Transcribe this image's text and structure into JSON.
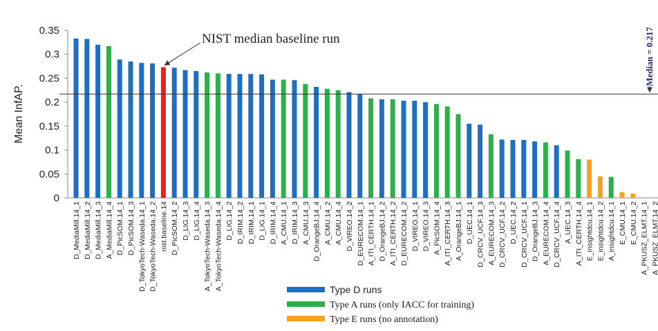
{
  "chart_data": {
    "type": "bar",
    "y_label": "Mean InfAP.",
    "categories": [
      "D_MediaMill.14_1",
      "D_MediaMill.14_2",
      "D_MediaMill.14_3",
      "A_MediaMill.14_4",
      "D_PicSOM.14_1",
      "D_PicSOM.14_3",
      "D_TokyoTech-Waseda.14_1",
      "D_TokyoTech-Waseda.14_2",
      "nist.baseline.14",
      "D_PicSOM.14_2",
      "D_LIG.14_3",
      "D_LIG.14_4",
      "A_TokyoTech-Waseda.14_3",
      "A_TokyoTech-Waseda.14_4",
      "D_LIG.14_2",
      "D_IRIM.14_2",
      "D_IRIM.14_1",
      "D_LIG.14_1",
      "D_IRIM.14_4",
      "A_CMU.14_1",
      "D_IRIM.14_3",
      "A_CMU.14_3",
      "D_OrangeBJ.14_4",
      "A_CMU.14_2",
      "A_CMU.14_4",
      "D_VIREO.14_2",
      "D_EURECOM.14_1",
      "A_ITI_CERTH.14_1",
      "D_OrangeBJ.14_2",
      "A_ITI_CERTH.14_2",
      "D_EURECOM.14_2",
      "D_VIREO.14_1",
      "D_VIREO.14_3",
      "A_PicSOM.14_4",
      "A_ITI_CERTH.14_3",
      "A_OrangeBJ.14_1",
      "D_UEC.14_1",
      "D_CRCV_UCF.14_3",
      "A_EURECOM.14_3",
      "D_CRCV_UCF.14_2",
      "D_UEC.14_2",
      "D_CRCV_UCF.14_1",
      "D_OrangeBJ.14_3",
      "A_EURECOM.14_4",
      "D_CRCV_UCF.14_4",
      "A_UEC.14_3",
      "A_ITI_CERTH.14_4",
      "E_insightdcu.14_1",
      "E_insightdcu.14_2",
      "A_insightdcu.14_1",
      "E_CMU.14_1",
      "E_CMU.14_2",
      "A_PKUSZ_ELMT.14_1",
      "A_PKUSZ_ELMT.14_2"
    ],
    "values": [
      0.333,
      0.332,
      0.32,
      0.317,
      0.289,
      0.285,
      0.282,
      0.281,
      0.273,
      0.272,
      0.267,
      0.265,
      0.262,
      0.26,
      0.259,
      0.259,
      0.259,
      0.258,
      0.247,
      0.247,
      0.246,
      0.238,
      0.232,
      0.228,
      0.225,
      0.221,
      0.217,
      0.208,
      0.206,
      0.206,
      0.203,
      0.203,
      0.2,
      0.196,
      0.191,
      0.175,
      0.155,
      0.153,
      0.133,
      0.122,
      0.121,
      0.121,
      0.118,
      0.116,
      0.11,
      0.099,
      0.081,
      0.08,
      0.045,
      0.044,
      0.012,
      0.009,
      0,
      0
    ],
    "colors": [
      "#1f6fc1",
      "#1f6fc1",
      "#1f6fc1",
      "#2db04b",
      "#1f6fc1",
      "#1f6fc1",
      "#1f6fc1",
      "#1f6fc1",
      "#e8211c",
      "#1f6fc1",
      "#1f6fc1",
      "#1f6fc1",
      "#2db04b",
      "#2db04b",
      "#1f6fc1",
      "#1f6fc1",
      "#1f6fc1",
      "#1f6fc1",
      "#1f6fc1",
      "#2db04b",
      "#1f6fc1",
      "#2db04b",
      "#1f6fc1",
      "#2db04b",
      "#2db04b",
      "#1f6fc1",
      "#1f6fc1",
      "#2db04b",
      "#1f6fc1",
      "#2db04b",
      "#1f6fc1",
      "#1f6fc1",
      "#1f6fc1",
      "#2db04b",
      "#2db04b",
      "#2db04b",
      "#1f6fc1",
      "#1f6fc1",
      "#2db04b",
      "#1f6fc1",
      "#1f6fc1",
      "#1f6fc1",
      "#1f6fc1",
      "#2db04b",
      "#1f6fc1",
      "#2db04b",
      "#2db04b",
      "#f7a21b",
      "#f7a21b",
      "#2db04b",
      "#f7a21b",
      "#f7a21b",
      "#2db04b",
      "#2db04b"
    ],
    "ylim": [
      0,
      0.35
    ],
    "yticks": [
      0,
      0.05,
      0.1,
      0.15,
      0.2,
      0.25,
      0.3,
      0.35
    ],
    "median": {
      "value": 0.217,
      "label": "Median = 0.217"
    },
    "baseline_annotation": "NIST median baseline run",
    "legend": [
      {
        "name": "Type D runs",
        "color": "#1f6fc1"
      },
      {
        "name": "Type A runs (only IACC for training)",
        "color": "#2db04b"
      },
      {
        "name": "Type E runs (no annotation)",
        "color": "#f7a21b"
      }
    ]
  }
}
